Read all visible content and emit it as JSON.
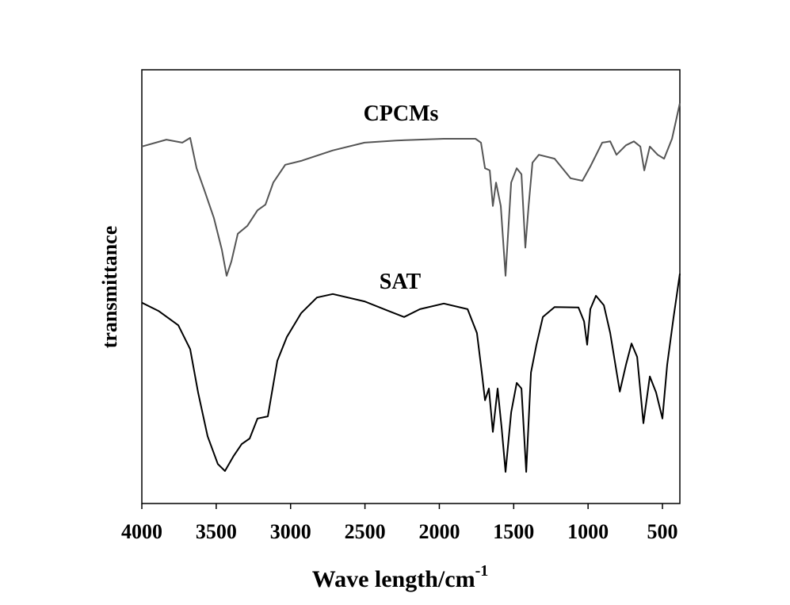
{
  "chart_data": {
    "type": "line",
    "x_label": "Wave length/cm",
    "x_label_superscript": "-1",
    "y_label": "transmittance",
    "annotations": [
      "CPCMs",
      "SAT"
    ],
    "xlim": [
      4000,
      383
    ],
    "xticks": [
      4000,
      3500,
      3000,
      2500,
      2000,
      1500,
      1000,
      500
    ],
    "ylim": [
      0,
      100
    ],
    "grid": false,
    "series": [
      {
        "name": "CPCMs",
        "color": "#555555",
        "x": [
          4000,
          3835,
          3728,
          3675,
          3632,
          3579,
          3515,
          3462,
          3430,
          3398,
          3355,
          3291,
          3222,
          3169,
          3116,
          3036,
          2929,
          2716,
          2503,
          2290,
          1970,
          1757,
          1720,
          1693,
          1661,
          1640,
          1619,
          1587,
          1555,
          1517,
          1480,
          1448,
          1422,
          1400,
          1374,
          1331,
          1225,
          1118,
          1038,
          985,
          905,
          851,
          809,
          745,
          692,
          649,
          622,
          585,
          532,
          489,
          436,
          383
        ],
        "values": [
          82.3,
          83.9,
          83.2,
          84.3,
          77.3,
          72.2,
          65.8,
          58.5,
          52.5,
          55.8,
          62.2,
          64.0,
          67.6,
          68.9,
          74.0,
          78.1,
          79.0,
          81.4,
          83.2,
          83.7,
          84.1,
          84.1,
          83.2,
          77.3,
          76.8,
          68.6,
          74.0,
          68.6,
          52.5,
          74.0,
          77.3,
          75.9,
          59.0,
          68.6,
          78.6,
          80.4,
          79.5,
          75.0,
          74.4,
          77.7,
          83.2,
          83.5,
          80.4,
          82.6,
          83.5,
          82.3,
          76.8,
          82.3,
          80.4,
          79.5,
          84.1,
          92.3
        ]
      },
      {
        "name": "SAT",
        "color": "#000000",
        "x": [
          4000,
          3888,
          3755,
          3675,
          3622,
          3558,
          3489,
          3441,
          3382,
          3329,
          3275,
          3222,
          3153,
          3089,
          3025,
          2929,
          2823,
          2716,
          2503,
          2343,
          2237,
          2130,
          1970,
          1810,
          1747,
          1715,
          1693,
          1667,
          1640,
          1608,
          1581,
          1555,
          1517,
          1480,
          1448,
          1416,
          1384,
          1347,
          1304,
          1225,
          1065,
          1027,
          1006,
          985,
          947,
          894,
          851,
          787,
          745,
          708,
          670,
          628,
          585,
          543,
          500,
          468,
          425,
          383
        ],
        "values": [
          46.3,
          44.4,
          41.1,
          35.6,
          25.6,
          15.5,
          9.1,
          7.5,
          11.0,
          13.7,
          15.0,
          19.6,
          20.1,
          32.9,
          38.4,
          43.9,
          47.5,
          48.3,
          46.6,
          44.4,
          43.0,
          44.8,
          46.1,
          44.8,
          39.3,
          30.3,
          23.8,
          26.5,
          16.5,
          26.5,
          17.4,
          7.3,
          21.0,
          27.8,
          26.5,
          7.3,
          30.2,
          36.6,
          43.0,
          45.3,
          45.2,
          42.0,
          36.6,
          44.8,
          47.9,
          45.7,
          39.3,
          25.8,
          32.0,
          36.9,
          33.8,
          18.5,
          29.3,
          25.6,
          19.6,
          32.0,
          43.0,
          53.0
        ]
      }
    ]
  }
}
